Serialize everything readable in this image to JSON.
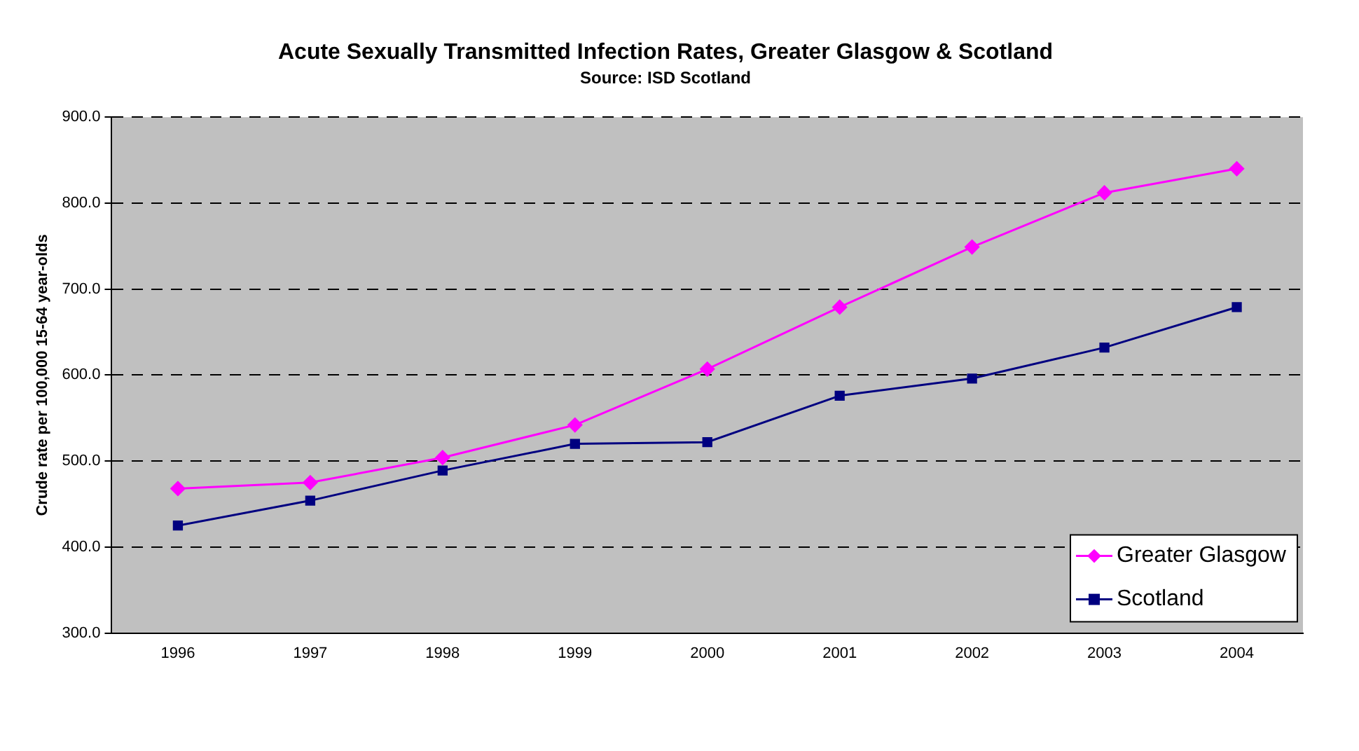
{
  "chart_data": {
    "type": "line",
    "title": "Acute Sexually Transmitted Infection Rates, Greater Glasgow & Scotland",
    "subtitle": "Source: ISD Scotland",
    "ylabel": "Crude rate per 100,000 15-64 year-olds",
    "categories": [
      "1996",
      "1997",
      "1998",
      "1999",
      "2000",
      "2001",
      "2002",
      "2003",
      "2004"
    ],
    "series": [
      {
        "name": "Greater Glasgow",
        "color": "#ff00ff",
        "marker": "diamond",
        "values": [
          468,
          475,
          504,
          542,
          607,
          679,
          749,
          812,
          840
        ]
      },
      {
        "name": "Scotland",
        "color": "#000080",
        "marker": "square",
        "values": [
          425,
          454,
          489,
          520,
          522,
          576,
          596,
          632,
          679
        ]
      }
    ],
    "ylim": [
      300,
      900
    ],
    "yticks": [
      {
        "value": 300,
        "label": "300.0"
      },
      {
        "value": 400,
        "label": "400.0"
      },
      {
        "value": 500,
        "label": "500.0"
      },
      {
        "value": 600,
        "label": "600.0"
      },
      {
        "value": 700,
        "label": "700.0"
      },
      {
        "value": 800,
        "label": "800.0"
      },
      {
        "value": 900,
        "label": "900.0"
      }
    ],
    "grid": "y",
    "legend": "bottom right",
    "line_style": "solid"
  }
}
